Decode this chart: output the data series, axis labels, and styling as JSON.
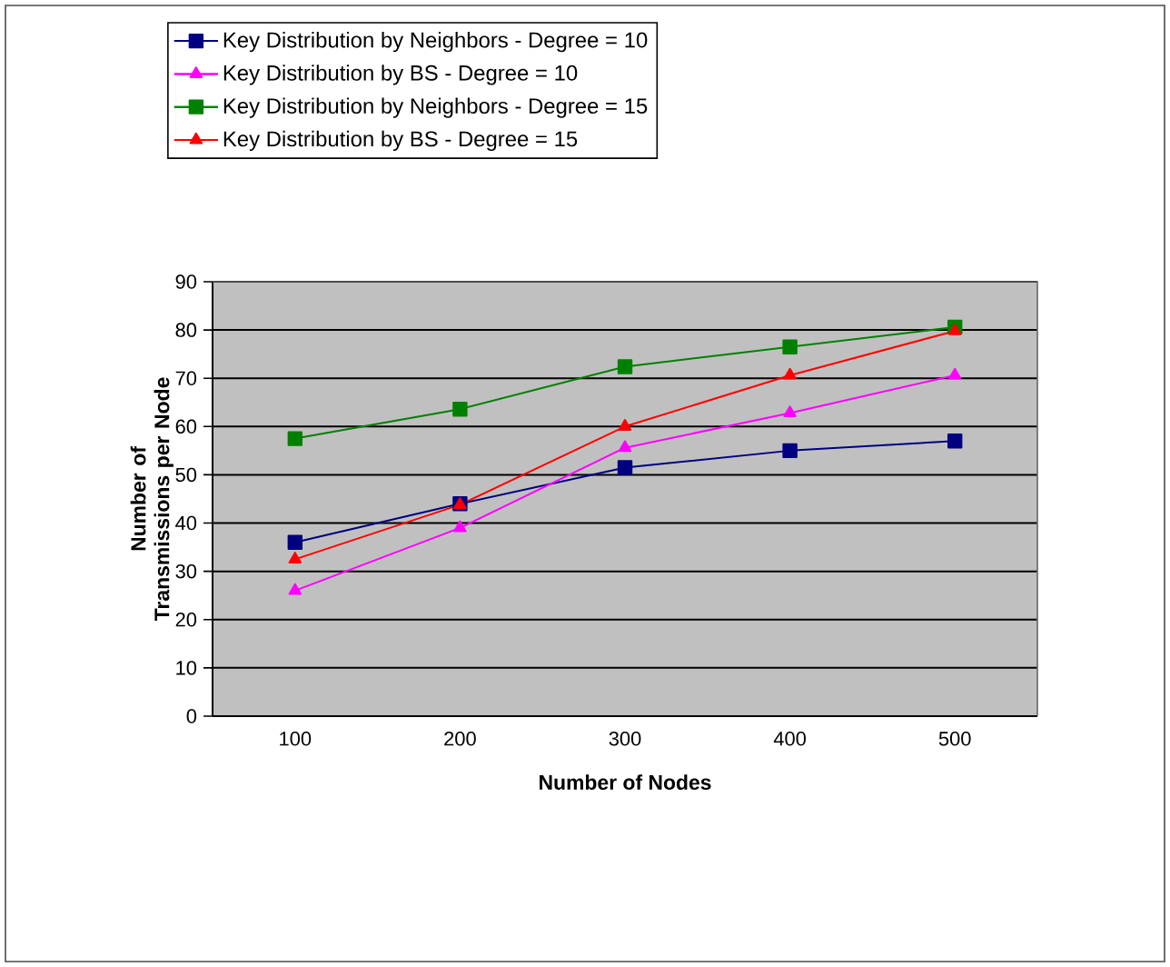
{
  "chart_data": {
    "type": "line",
    "xlabel": "Number of Nodes",
    "ylabel": "Number of Transmissions per Node",
    "categories": [
      "100",
      "200",
      "300",
      "400",
      "500"
    ],
    "series": [
      {
        "name": "Key Distribution by Neighbors - Degree = 10",
        "color": "#000080",
        "marker": "square",
        "values": [
          36,
          44,
          51.5,
          55,
          57
        ]
      },
      {
        "name": "Key Distribution by BS - Degree = 10",
        "color": "#ff00ff",
        "marker": "triangle",
        "values": [
          26,
          39,
          55.6,
          62.8,
          70.6
        ]
      },
      {
        "name": "Key Distribution by Neighbors - Degree = 15",
        "color": "#008000",
        "marker": "square",
        "values": [
          57.5,
          63.6,
          72.4,
          76.5,
          80.6
        ]
      },
      {
        "name": "Key Distribution by BS - Degree = 15",
        "color": "#ff0000",
        "marker": "triangle",
        "values": [
          32.5,
          43.8,
          60,
          70.6,
          79.8
        ]
      }
    ],
    "ylim": [
      0,
      90
    ],
    "yticks": [
      0,
      10,
      20,
      30,
      40,
      50,
      60,
      70,
      80,
      90
    ],
    "grid": "y",
    "legend": "top",
    "line_style": "solid"
  }
}
